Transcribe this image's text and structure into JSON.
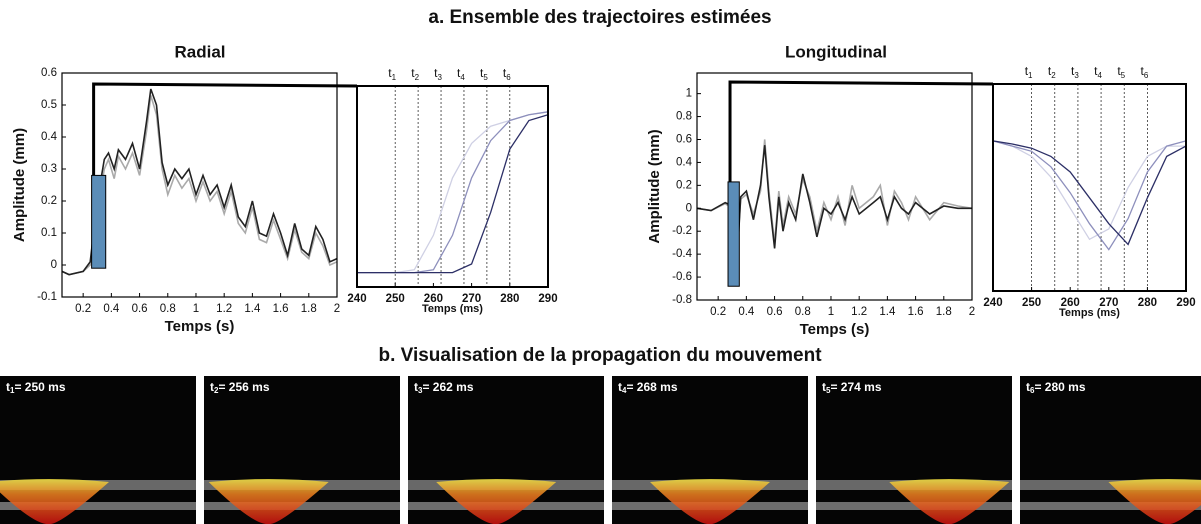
{
  "title_a": "a. Ensemble des trajectoires estimées",
  "title_b": "b. Visualisation de la propagation du mouvement",
  "chart_data": [
    {
      "type": "line",
      "title": "Radial",
      "xlabel": "Temps (s)",
      "ylabel": "Amplitude (mm)",
      "xlim": [
        0.05,
        2
      ],
      "ylim": [
        -0.1,
        0.6
      ],
      "xticks": [
        0.2,
        0.4,
        0.6,
        0.8,
        1,
        1.2,
        1.4,
        1.6,
        1.8,
        2
      ],
      "yticks": [
        -0.1,
        0,
        0.1,
        0.2,
        0.3,
        0.4,
        0.5,
        0.6
      ],
      "highlight": {
        "x": [
          0.26,
          0.36
        ],
        "y": [
          -0.01,
          0.28
        ],
        "color": "#5b8db8"
      },
      "x": [
        0.05,
        0.1,
        0.2,
        0.25,
        0.3,
        0.35,
        0.38,
        0.42,
        0.45,
        0.5,
        0.55,
        0.6,
        0.65,
        0.68,
        0.72,
        0.76,
        0.8,
        0.85,
        0.9,
        0.95,
        1.0,
        1.05,
        1.1,
        1.15,
        1.2,
        1.25,
        1.3,
        1.35,
        1.4,
        1.45,
        1.5,
        1.55,
        1.6,
        1.65,
        1.7,
        1.75,
        1.8,
        1.85,
        1.9,
        1.95,
        2.0
      ],
      "series": [
        {
          "color": "#aaaaaa",
          "values": [
            -0.02,
            -0.03,
            -0.02,
            0.0,
            0.16,
            0.3,
            0.33,
            0.27,
            0.34,
            0.3,
            0.35,
            0.28,
            0.42,
            0.53,
            0.47,
            0.3,
            0.22,
            0.28,
            0.24,
            0.27,
            0.2,
            0.26,
            0.2,
            0.23,
            0.16,
            0.23,
            0.13,
            0.1,
            0.18,
            0.08,
            0.07,
            0.14,
            0.08,
            0.02,
            0.11,
            0.04,
            0.02,
            0.1,
            0.06,
            0.0,
            0.01
          ]
        },
        {
          "color": "#222222",
          "values": [
            -0.02,
            -0.03,
            -0.02,
            0.01,
            0.2,
            0.33,
            0.35,
            0.3,
            0.36,
            0.33,
            0.38,
            0.3,
            0.45,
            0.55,
            0.5,
            0.32,
            0.25,
            0.3,
            0.27,
            0.3,
            0.22,
            0.28,
            0.22,
            0.25,
            0.18,
            0.25,
            0.15,
            0.12,
            0.2,
            0.1,
            0.09,
            0.16,
            0.1,
            0.03,
            0.13,
            0.05,
            0.03,
            0.12,
            0.08,
            0.01,
            0.02
          ]
        }
      ]
    },
    {
      "type": "line",
      "xlabel": "Temps (ms)",
      "xlim": [
        240,
        290
      ],
      "ylim": [
        -0.08,
        0.62
      ],
      "xticks": [
        240,
        250,
        260,
        270,
        280,
        290
      ],
      "markers": [
        {
          "value": 250,
          "label": "t",
          "sub": "1"
        },
        {
          "value": 256,
          "label": "t",
          "sub": "2"
        },
        {
          "value": 262,
          "label": "t",
          "sub": "3"
        },
        {
          "value": 268,
          "label": "t",
          "sub": "4"
        },
        {
          "value": 274,
          "label": "t",
          "sub": "5"
        },
        {
          "value": 280,
          "label": "t",
          "sub": "6"
        }
      ],
      "x": [
        240,
        245,
        250,
        255,
        260,
        265,
        270,
        275,
        280,
        285,
        290
      ],
      "series": [
        {
          "color": "#cfd0e4",
          "values": [
            -0.03,
            -0.03,
            -0.03,
            -0.02,
            0.1,
            0.3,
            0.42,
            0.48,
            0.5,
            0.52,
            0.53
          ]
        },
        {
          "color": "#8d8fbc",
          "values": [
            -0.03,
            -0.03,
            -0.03,
            -0.03,
            -0.02,
            0.1,
            0.3,
            0.43,
            0.5,
            0.52,
            0.53
          ]
        },
        {
          "color": "#2c2f66",
          "values": [
            -0.03,
            -0.03,
            -0.03,
            -0.03,
            -0.03,
            -0.03,
            0.0,
            0.18,
            0.4,
            0.5,
            0.52
          ]
        }
      ]
    },
    {
      "type": "line",
      "title": "Longitudinal",
      "xlabel": "Temps (s)",
      "ylabel": "Amplitude (mm)",
      "xlim": [
        0.05,
        2
      ],
      "ylim": [
        -0.8,
        1.18
      ],
      "xticks": [
        0.2,
        0.4,
        0.6,
        0.8,
        1,
        1.2,
        1.4,
        1.6,
        1.8,
        2
      ],
      "yticks": [
        -0.8,
        -0.6,
        -0.4,
        -0.2,
        0,
        0.2,
        0.4,
        0.6,
        0.8,
        1
      ],
      "highlight": {
        "x": [
          0.27,
          0.35
        ],
        "y": [
          -0.68,
          0.23
        ],
        "color": "#5b8db8"
      },
      "x": [
        0.05,
        0.15,
        0.25,
        0.3,
        0.33,
        0.36,
        0.4,
        0.45,
        0.5,
        0.53,
        0.56,
        0.6,
        0.63,
        0.66,
        0.7,
        0.75,
        0.8,
        0.85,
        0.9,
        0.95,
        1.0,
        1.05,
        1.1,
        1.15,
        1.2,
        1.3,
        1.35,
        1.4,
        1.45,
        1.5,
        1.55,
        1.6,
        1.7,
        1.8,
        1.9,
        2.0
      ],
      "series": [
        {
          "color": "#aaaaaa",
          "values": [
            0.0,
            -0.02,
            0.04,
            0.0,
            -0.45,
            0.08,
            0.12,
            -0.05,
            0.15,
            0.6,
            0.15,
            -0.3,
            0.15,
            -0.15,
            0.1,
            -0.05,
            0.25,
            0.1,
            -0.2,
            0.05,
            -0.1,
            0.1,
            -0.15,
            0.2,
            0.0,
            0.1,
            0.2,
            -0.15,
            0.15,
            0.05,
            -0.1,
            0.1,
            -0.1,
            0.05,
            0.02,
            0.0
          ]
        },
        {
          "color": "#222222",
          "values": [
            0.0,
            -0.02,
            0.05,
            0.02,
            -0.55,
            0.1,
            0.15,
            -0.1,
            0.2,
            0.55,
            0.1,
            -0.35,
            0.1,
            -0.2,
            0.05,
            -0.1,
            0.3,
            0.05,
            -0.25,
            0.0,
            -0.05,
            0.05,
            -0.1,
            0.1,
            -0.05,
            0.05,
            0.1,
            -0.1,
            0.1,
            0.0,
            -0.05,
            0.05,
            -0.05,
            0.02,
            0.0,
            0.0
          ]
        }
      ]
    },
    {
      "type": "line",
      "xlabel": "Temps (ms)",
      "xlim": [
        240,
        290
      ],
      "ylim": [
        -0.8,
        1.2
      ],
      "xticks": [
        240,
        250,
        260,
        270,
        280,
        290
      ],
      "markers": [
        {
          "value": 250,
          "label": "t",
          "sub": "1"
        },
        {
          "value": 256,
          "label": "t",
          "sub": "2"
        },
        {
          "value": 262,
          "label": "t",
          "sub": "3"
        },
        {
          "value": 268,
          "label": "t",
          "sub": "4"
        },
        {
          "value": 274,
          "label": "t",
          "sub": "5"
        },
        {
          "value": 280,
          "label": "t",
          "sub": "6"
        }
      ],
      "x": [
        240,
        245,
        250,
        255,
        260,
        265,
        270,
        275,
        280,
        285,
        290
      ],
      "series": [
        {
          "color": "#cfd0e4",
          "values": [
            0.65,
            0.6,
            0.5,
            0.3,
            0.0,
            -0.3,
            -0.2,
            0.2,
            0.5,
            0.6,
            0.6
          ]
        },
        {
          "color": "#8d8fbc",
          "values": [
            0.65,
            0.6,
            0.55,
            0.4,
            0.15,
            -0.15,
            -0.4,
            -0.1,
            0.35,
            0.6,
            0.65
          ]
        },
        {
          "color": "#2c2f66",
          "values": [
            0.65,
            0.62,
            0.58,
            0.5,
            0.35,
            0.1,
            -0.15,
            -0.35,
            0.1,
            0.5,
            0.6
          ]
        }
      ]
    }
  ],
  "frames": [
    {
      "symbol": "t",
      "index": "1",
      "text": "= 250 ms"
    },
    {
      "symbol": "t",
      "index": "2",
      "text": "= 256 ms"
    },
    {
      "symbol": "t",
      "index": "3",
      "text": "= 262 ms"
    },
    {
      "symbol": "t",
      "index": "4",
      "text": "= 268 ms"
    },
    {
      "symbol": "t",
      "index": "5",
      "text": "= 274 ms"
    },
    {
      "symbol": "t",
      "index": "6",
      "text": "= 280 ms"
    }
  ]
}
